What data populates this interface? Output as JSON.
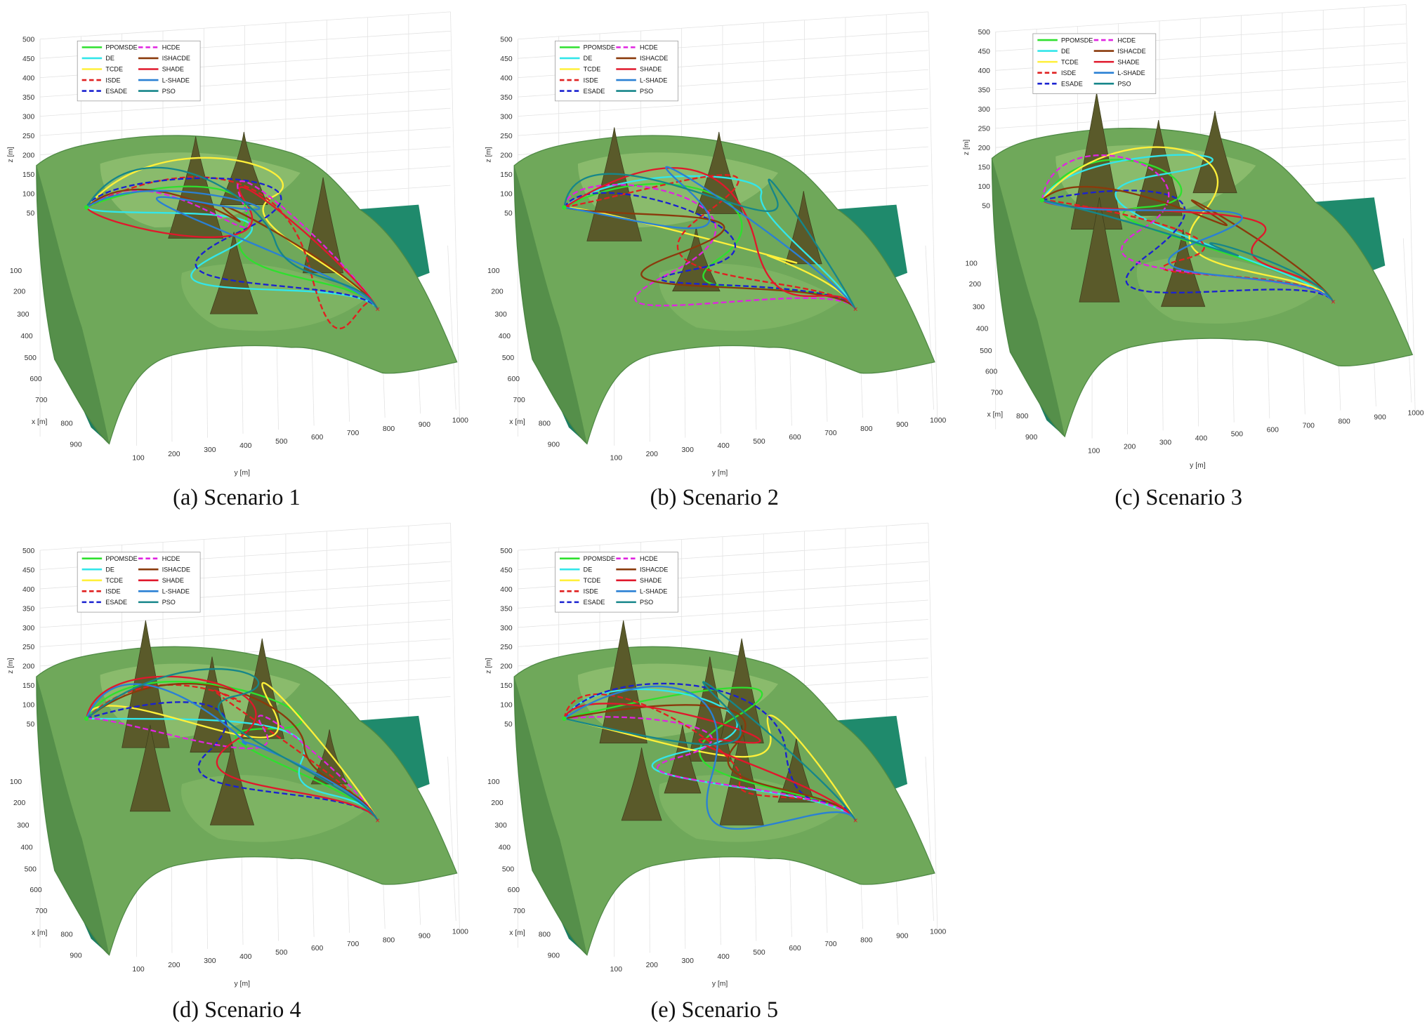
{
  "axes": {
    "z_label": "z [m]",
    "x_label": "x [m]",
    "y_label": "y [m]",
    "z_ticks": [
      500,
      450,
      400,
      350,
      300,
      250,
      200,
      150,
      100,
      50
    ],
    "x_ticks": [
      100,
      200,
      300,
      400,
      500,
      600,
      700,
      800,
      900
    ],
    "y_ticks": [
      100,
      200,
      300,
      400,
      500,
      600,
      700,
      800,
      900,
      1000
    ]
  },
  "legend": [
    {
      "name": "PPOMSDE",
      "color": "#2ee02e",
      "dashed": false
    },
    {
      "name": "DE",
      "color": "#33e6ea",
      "dashed": false
    },
    {
      "name": "TCDE",
      "color": "#fff03a",
      "dashed": false
    },
    {
      "name": "ISDE",
      "color": "#e02020",
      "dashed": true
    },
    {
      "name": "ESADE",
      "color": "#1a22d0",
      "dashed": true
    },
    {
      "name": "HCDE",
      "color": "#e024e0",
      "dashed": true
    },
    {
      "name": "ISHACDE",
      "color": "#8a3a0c",
      "dashed": false
    },
    {
      "name": "SHADE",
      "color": "#e0182c",
      "dashed": false
    },
    {
      "name": "L-SHADE",
      "color": "#2a80d4",
      "dashed": false
    },
    {
      "name": "PSO",
      "color": "#16868a",
      "dashed": false
    }
  ],
  "panels": [
    {
      "caption": "(a) Scenario 1"
    },
    {
      "caption": "(b) Scenario 2"
    },
    {
      "caption": "(c) Scenario 3"
    },
    {
      "caption": "(d) Scenario 4"
    },
    {
      "caption": "(e) Scenario 5"
    }
  ]
}
